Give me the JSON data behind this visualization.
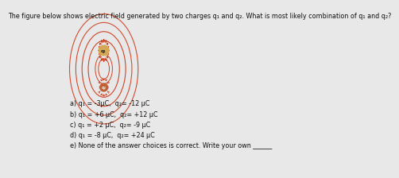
{
  "title": "The figure below shows electric field generated by two charges q₁ and q₂. What is most likely combination of q₁ and q₂?",
  "choices": [
    "a) q₁ = -3μC,  q₂= -12 μC",
    "b) q₁ = +6 μC,  q₂= +12 μC",
    "c) q₁ = +2 μC,  q₂= -9 μC",
    "d) q₁ = -8 μC,  q₂= +24 μC",
    "e) None of the answer choices is correct. Write your own ______"
  ],
  "bg_color": "#e8e8e8",
  "panel_color": "#f5f5f5",
  "text_color": "#111111",
  "title_fontsize": 5.8,
  "choice_fontsize": 5.8,
  "q1_color": "#d4a855",
  "q2_color": "#c06030",
  "line_color": "#cc3311",
  "gray_box_color": "#c8c8c8"
}
